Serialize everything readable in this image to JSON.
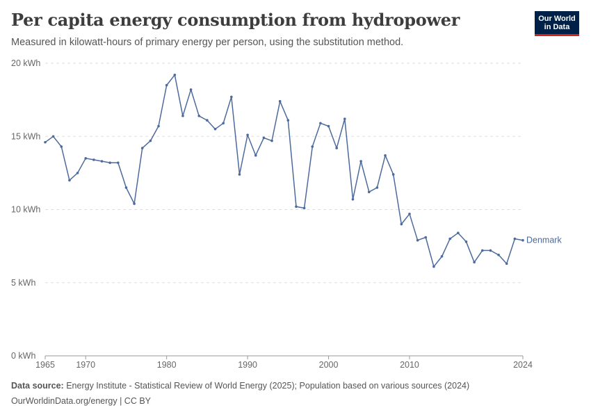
{
  "header": {
    "title": "Per capita energy consumption from hydropower",
    "subtitle": "Measured in kilowatt-hours of primary energy per person, using the substitution method.",
    "logo_line1": "Our World",
    "logo_line2": "in Data"
  },
  "footer": {
    "source_label": "Data source:",
    "source_text": "Energy Institute - Statistical Review of World Energy (2025); Population based on various sources (2024)",
    "url_text": "OurWorldinData.org/energy | CC BY"
  },
  "colors": {
    "series": "#4c6a9c",
    "grid": "#dddddd",
    "axis_text": "#666666",
    "logo_bg": "#002147",
    "logo_accent": "#ce261e"
  },
  "chart_data": {
    "type": "line",
    "title": "Per capita energy consumption from hydropower",
    "xlabel": "",
    "ylabel": "",
    "xlim": [
      1965,
      2024
    ],
    "ylim": [
      0,
      20
    ],
    "grid": true,
    "y_ticks": [
      0,
      5,
      10,
      15,
      20
    ],
    "y_tick_labels": [
      "0 kWh",
      "5 kWh",
      "10 kWh",
      "15 kWh",
      "20 kWh"
    ],
    "x_ticks": [
      1965,
      1970,
      1980,
      1990,
      2000,
      2010,
      2024
    ],
    "x_tick_labels": [
      "1965",
      "1970",
      "1980",
      "1990",
      "2000",
      "2010",
      "2024"
    ],
    "series": [
      {
        "name": "Denmark",
        "x": [
          1965,
          1966,
          1967,
          1968,
          1969,
          1970,
          1971,
          1972,
          1973,
          1974,
          1975,
          1976,
          1977,
          1978,
          1979,
          1980,
          1981,
          1982,
          1983,
          1984,
          1985,
          1986,
          1987,
          1988,
          1989,
          1990,
          1991,
          1992,
          1993,
          1994,
          1995,
          1996,
          1997,
          1998,
          1999,
          2000,
          2001,
          2002,
          2003,
          2004,
          2005,
          2006,
          2007,
          2008,
          2009,
          2010,
          2011,
          2012,
          2013,
          2014,
          2015,
          2016,
          2017,
          2018,
          2019,
          2020,
          2021,
          2022,
          2023,
          2024
        ],
        "y": [
          14.6,
          15.0,
          14.3,
          12.0,
          12.5,
          13.5,
          13.4,
          13.3,
          13.2,
          13.2,
          11.5,
          10.4,
          14.2,
          14.7,
          15.7,
          18.5,
          19.2,
          16.4,
          18.2,
          16.4,
          16.1,
          15.5,
          15.9,
          17.7,
          12.4,
          15.1,
          13.7,
          14.9,
          14.7,
          17.4,
          16.1,
          10.2,
          10.1,
          14.3,
          15.9,
          15.7,
          14.2,
          16.2,
          10.7,
          13.3,
          11.2,
          11.5,
          13.7,
          12.4,
          9.0,
          9.7,
          7.9,
          8.1,
          6.1,
          6.8,
          8.0,
          8.4,
          7.8,
          6.4,
          7.2,
          7.2,
          6.9,
          6.3,
          8.0,
          7.9
        ]
      }
    ]
  }
}
